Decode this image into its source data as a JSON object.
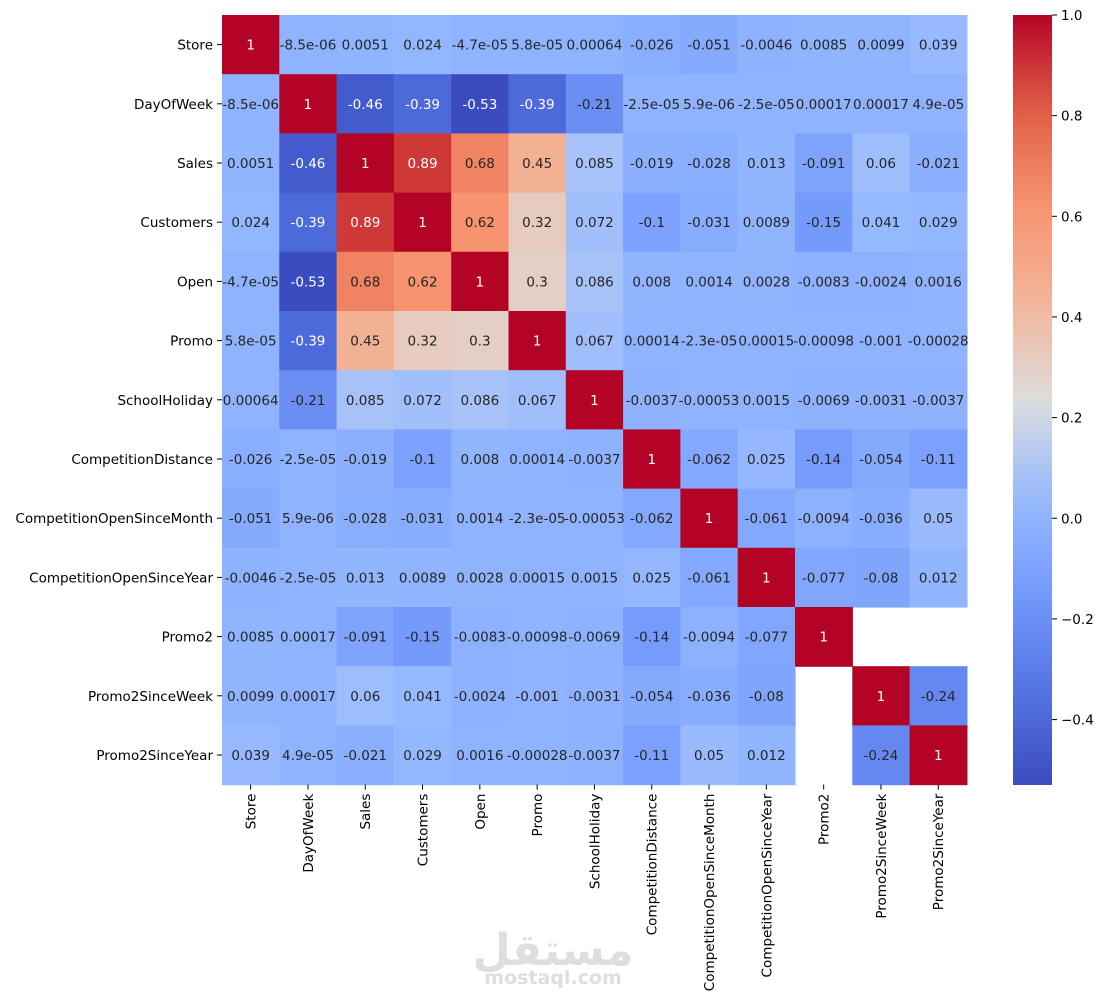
{
  "chart_data": {
    "type": "heatmap",
    "title": "",
    "xlabel": "",
    "ylabel": "",
    "colormap": "coolwarm",
    "vmin": -0.53,
    "vmax": 1.0,
    "labels": [
      "Store",
      "DayOfWeek",
      "Sales",
      "Customers",
      "Open",
      "Promo",
      "SchoolHoliday",
      "CompetitionDistance",
      "CompetitionOpenSinceMonth",
      "CompetitionOpenSinceYear",
      "Promo2",
      "Promo2SinceWeek",
      "Promo2SinceYear"
    ],
    "cells": [
      [
        "1",
        "-8.5e-06",
        "0.0051",
        "0.024",
        "-4.7e-05",
        "5.8e-05",
        "0.00064",
        "-0.026",
        "-0.051",
        "-0.0046",
        "0.0085",
        "0.0099",
        "0.039"
      ],
      [
        "-8.5e-06",
        "1",
        "-0.46",
        "-0.39",
        "-0.53",
        "-0.39",
        "-0.21",
        "-2.5e-05",
        "5.9e-06",
        "-2.5e-05",
        "0.00017",
        "0.00017",
        "4.9e-05"
      ],
      [
        "0.0051",
        "-0.46",
        "1",
        "0.89",
        "0.68",
        "0.45",
        "0.085",
        "-0.019",
        "-0.028",
        "0.013",
        "-0.091",
        "0.06",
        "-0.021"
      ],
      [
        "0.024",
        "-0.39",
        "0.89",
        "1",
        "0.62",
        "0.32",
        "0.072",
        "-0.1",
        "-0.031",
        "0.0089",
        "-0.15",
        "0.041",
        "0.029"
      ],
      [
        "-4.7e-05",
        "-0.53",
        "0.68",
        "0.62",
        "1",
        "0.3",
        "0.086",
        "0.008",
        "0.0014",
        "0.0028",
        "-0.0083",
        "-0.0024",
        "0.0016"
      ],
      [
        "5.8e-05",
        "-0.39",
        "0.45",
        "0.32",
        "0.3",
        "1",
        "0.067",
        "0.00014",
        "-2.3e-05",
        "0.00015",
        "-0.00098",
        "-0.001",
        "-0.00028"
      ],
      [
        "0.00064",
        "-0.21",
        "0.085",
        "0.072",
        "0.086",
        "0.067",
        "1",
        "-0.0037",
        "-0.00053",
        "0.0015",
        "-0.0069",
        "-0.0031",
        "-0.0037"
      ],
      [
        "-0.026",
        "-2.5e-05",
        "-0.019",
        "-0.1",
        "0.008",
        "0.00014",
        "-0.0037",
        "1",
        "-0.062",
        "0.025",
        "-0.14",
        "-0.054",
        "-0.11"
      ],
      [
        "-0.051",
        "5.9e-06",
        "-0.028",
        "-0.031",
        "0.0014",
        "-2.3e-05",
        "-0.00053",
        "-0.062",
        "1",
        "-0.061",
        "-0.0094",
        "-0.036",
        "0.05"
      ],
      [
        "-0.0046",
        "-2.5e-05",
        "0.013",
        "0.0089",
        "0.0028",
        "0.00015",
        "0.0015",
        "0.025",
        "-0.061",
        "1",
        "-0.077",
        "-0.08",
        "0.012"
      ],
      [
        "0.0085",
        "0.00017",
        "-0.091",
        "-0.15",
        "-0.0083",
        "-0.00098",
        "-0.0069",
        "-0.14",
        "-0.0094",
        "-0.077",
        "1",
        null,
        null
      ],
      [
        "0.0099",
        "0.00017",
        "0.06",
        "0.041",
        "-0.0024",
        "-0.001",
        "-0.0031",
        "-0.054",
        "-0.036",
        "-0.08",
        null,
        "1",
        "-0.24"
      ],
      [
        "0.039",
        "4.9e-05",
        "-0.021",
        "0.029",
        "0.0016",
        "-0.00028",
        "-0.0037",
        "-0.11",
        "0.05",
        "0.012",
        null,
        "-0.24",
        "1"
      ]
    ],
    "colorbar_ticks": [
      "1.0",
      "0.8",
      "0.6",
      "0.4",
      "0.2",
      "0.0",
      "−0.2",
      "−0.4"
    ],
    "grid": false,
    "legend": "colorbar-right"
  },
  "watermark": {
    "arabic": "مستقل",
    "latin": "mostaql.com"
  }
}
